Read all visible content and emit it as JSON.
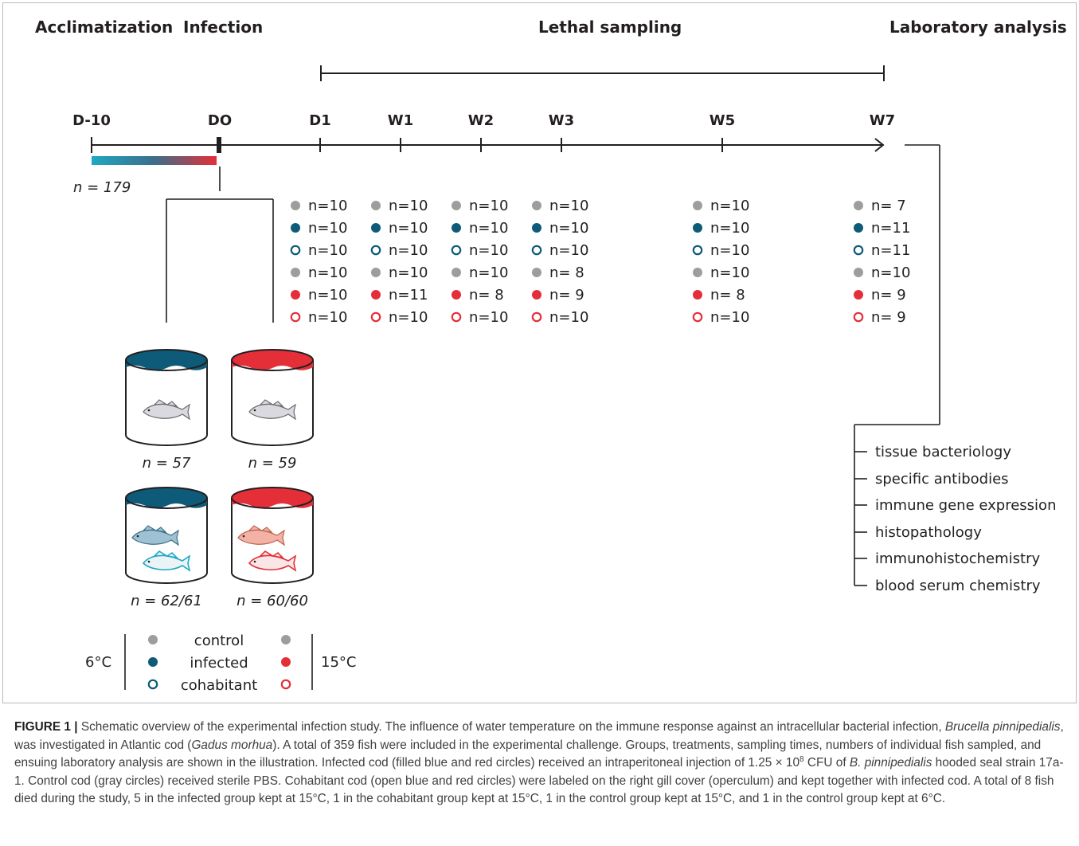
{
  "phases": {
    "acclimatization": "Acclimatization",
    "infection": "Infection",
    "lethal_sampling": "Lethal sampling",
    "laboratory_analysis": "Laboratory analysis"
  },
  "timepoints": [
    "D-10",
    "DO",
    "D1",
    "W1",
    "W2",
    "W3",
    "W5",
    "W7"
  ],
  "acclimatization_n": "n = 179",
  "sampling": [
    {
      "timepoint": "D1",
      "counts": [
        "n=10",
        "n=10",
        "n=10",
        "n=10",
        "n=10",
        "n=10"
      ]
    },
    {
      "timepoint": "W1",
      "counts": [
        "n=10",
        "n=10",
        "n=10",
        "n=10",
        "n=11",
        "n=10"
      ]
    },
    {
      "timepoint": "W2",
      "counts": [
        "n=10",
        "n=10",
        "n=10",
        "n=10",
        "n= 8",
        "n=10"
      ]
    },
    {
      "timepoint": "W3",
      "counts": [
        "n=10",
        "n=10",
        "n=10",
        "n= 8",
        "n= 9",
        "n=10"
      ]
    },
    {
      "timepoint": "W5",
      "counts": [
        "n=10",
        "n=10",
        "n=10",
        "n=10",
        "n= 8",
        "n=10"
      ]
    },
    {
      "timepoint": "W7",
      "counts": [
        "n= 7",
        "n=11",
        "n=11",
        "n=10",
        "n= 9",
        "n= 9"
      ]
    }
  ],
  "row_markers": [
    "control-6",
    "infected-6",
    "cohabitant-6",
    "control-15",
    "infected-15",
    "cohabitant-15"
  ],
  "tanks": [
    {
      "temp": "6°C",
      "type": "control",
      "count": "n = 57"
    },
    {
      "temp": "15°C",
      "type": "control",
      "count": "n = 59"
    },
    {
      "temp": "6°C",
      "type": "infected/cohabitant",
      "count": "n = 62/61"
    },
    {
      "temp": "15°C",
      "type": "infected/cohabitant",
      "count": "n = 60/60"
    }
  ],
  "legend": {
    "left_temp": "6°C",
    "right_temp": "15°C",
    "items": [
      "control",
      "infected",
      "cohabitant"
    ]
  },
  "analyses": [
    "tissue bacteriology",
    "specific antibodies",
    "immune gene expression",
    "histopathology",
    "immunohistochemistry",
    "blood serum chemistry"
  ],
  "colors": {
    "grey": "#9d9d9d",
    "blue": "#0d5b78",
    "red": "#e42f38",
    "teal": "#1fa8c2"
  },
  "caption": {
    "label": "FIGURE 1 |",
    "part1": " Schematic overview of the experimental infection study. The influence of water temperature on the immune response against an intracellular bacterial infection, ",
    "species1": "Brucella pinnipedialis",
    "part2": ", was investigated in Atlantic cod (",
    "species2": "Gadus morhua",
    "part3": "). A total of 359 fish were included in the experimental challenge. Groups, treatments, sampling times, numbers of individual fish sampled, and ensuing laboratory analysis are shown in the illustration. Infected cod (filled blue and red circles) received an intraperitoneal injection of 1.25 × 10",
    "exponent": "8",
    "part4": " CFU of ",
    "species3": "B. pinnipedialis",
    "part5": " hooded seal strain 17a-1. Control cod (gray circles) received sterile PBS. Cohabitant cod (open blue and red circles) were labeled on the right gill cover (operculum) and kept together with infected cod. A total of 8 fish died during the study, 5 in the infected group kept at 15°C, 1 in the cohabitant group kept at 15°C, 1 in the control group kept at 15°C, and 1 in the control group kept at 6°C."
  }
}
